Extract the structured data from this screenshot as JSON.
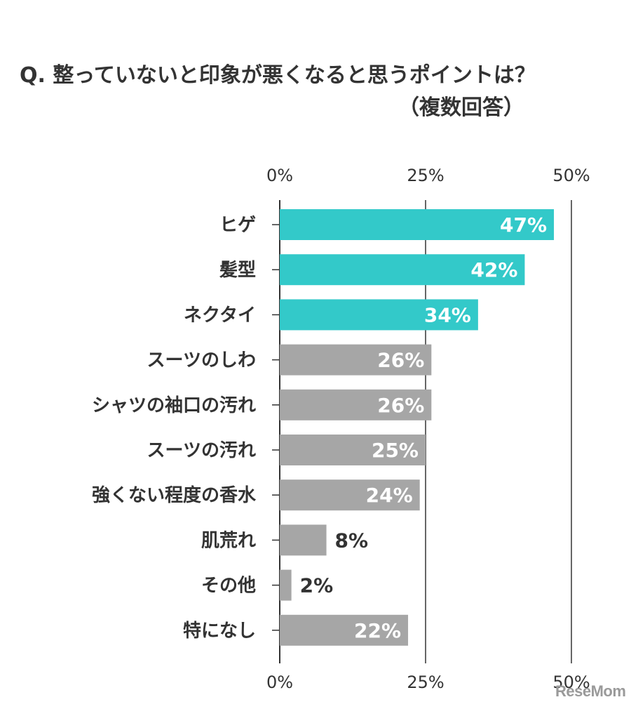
{
  "title": "Q. 整っていないと印象が悪くなると思うポイントは？",
  "subtitle": "（複数回答）",
  "watermark": "ReseMom",
  "colors": {
    "highlight": "#33c9c9",
    "normal": "#a6a6a6",
    "axis": "#333333"
  },
  "chart_data": {
    "type": "bar",
    "orientation": "horizontal",
    "categories": [
      "ヒゲ",
      "髪型",
      "ネクタイ",
      "スーツのしわ",
      "シャツの袖口の汚れ",
      "スーツの汚れ",
      "強くない程度の香水",
      "肌荒れ",
      "その他",
      "特になし"
    ],
    "values": [
      47,
      42,
      34,
      26,
      26,
      25,
      24,
      8,
      2,
      22
    ],
    "value_labels": [
      "47%",
      "42%",
      "34%",
      "26%",
      "26%",
      "25%",
      "24%",
      "8%",
      "2%",
      "22%"
    ],
    "highlighted": [
      true,
      true,
      true,
      false,
      false,
      false,
      false,
      false,
      false,
      false
    ],
    "xlim": [
      0,
      50
    ],
    "x_ticks": [
      0,
      25,
      50
    ],
    "x_tick_labels": [
      "0%",
      "25%",
      "50%"
    ],
    "ticks_top_and_bottom": true,
    "grid": false
  }
}
